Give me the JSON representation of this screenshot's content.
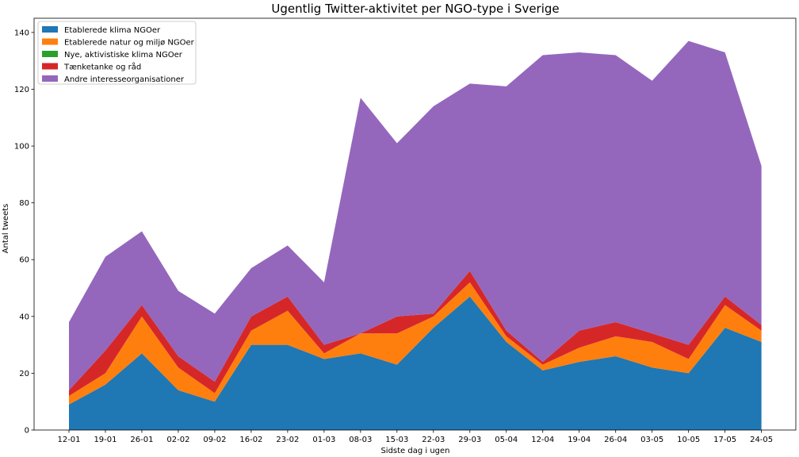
{
  "chart_data": {
    "type": "area",
    "stacked": true,
    "title": "Ugentlig Twitter-aktivitet per NGO-type i Sverige",
    "xlabel": "Sidste dag i ugen",
    "ylabel": "Antal tweets",
    "ylim": [
      0,
      145
    ],
    "yticks": [
      0,
      20,
      40,
      60,
      80,
      100,
      120,
      140
    ],
    "legend_position": "top-left",
    "grid": false,
    "categories": [
      "12-01",
      "19-01",
      "26-01",
      "02-02",
      "09-02",
      "16-02",
      "23-02",
      "01-03",
      "08-03",
      "15-03",
      "22-03",
      "29-03",
      "05-04",
      "12-04",
      "19-04",
      "26-04",
      "03-05",
      "10-05",
      "17-05",
      "24-05"
    ],
    "series": [
      {
        "name": "Etablerede klima NGOer",
        "color": "#1f77b4",
        "values": [
          9,
          16,
          27,
          14,
          10,
          30,
          30,
          25,
          27,
          23,
          36,
          47,
          31,
          21,
          24,
          26,
          22,
          20,
          36,
          31
        ]
      },
      {
        "name": "Etablerede natur og miljø NGOer",
        "color": "#ff7f0e",
        "values": [
          3,
          4,
          13,
          8,
          3,
          5,
          12,
          2,
          7,
          11,
          4,
          5,
          2,
          2,
          5,
          7,
          9,
          5,
          8,
          4
        ]
      },
      {
        "name": "Nye, aktivistiske klima NGOer",
        "color": "#2ca02c",
        "values": [
          0,
          0,
          0,
          0,
          0,
          0,
          0,
          0,
          0,
          0,
          0,
          0,
          0,
          0,
          0,
          0,
          0,
          0,
          0,
          0
        ]
      },
      {
        "name": "Tænketanke og råd",
        "color": "#d62728",
        "values": [
          2,
          8,
          4,
          4,
          4,
          5,
          5,
          3,
          0,
          6,
          1,
          4,
          2,
          1,
          6,
          5,
          3,
          5,
          3,
          2
        ]
      },
      {
        "name": "Andre interesseorganisationer",
        "color": "#9467bd",
        "values": [
          24,
          33,
          26,
          23,
          24,
          17,
          18,
          22,
          83,
          61,
          73,
          66,
          86,
          108,
          98,
          94,
          89,
          107,
          86,
          56
        ]
      }
    ]
  }
}
